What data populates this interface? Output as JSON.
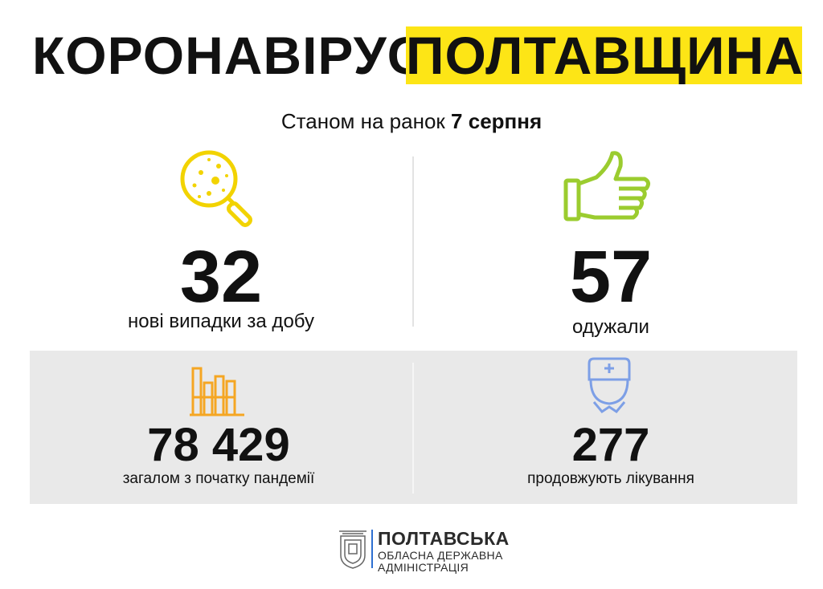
{
  "header": {
    "title_left": "КОРОНАВІРУС.",
    "title_right": "ПОЛТАВЩИНА"
  },
  "subtitle": {
    "text": "Станом на ранок",
    "date": "7 серпня"
  },
  "stats": [
    {
      "value": "32",
      "label": "нові випадки за добу"
    },
    {
      "value": "57",
      "label": "одужали"
    },
    {
      "value": "78 429",
      "label": "загалом з початку пандемії"
    },
    {
      "value": "277",
      "label": "продовжують лікування"
    }
  ],
  "footer": {
    "line1": "ПОЛТАВСЬКА",
    "line2": "ОБЛАСНА ДЕРЖАВНА",
    "line3": "АДМІНІСТРАЦІЯ"
  }
}
